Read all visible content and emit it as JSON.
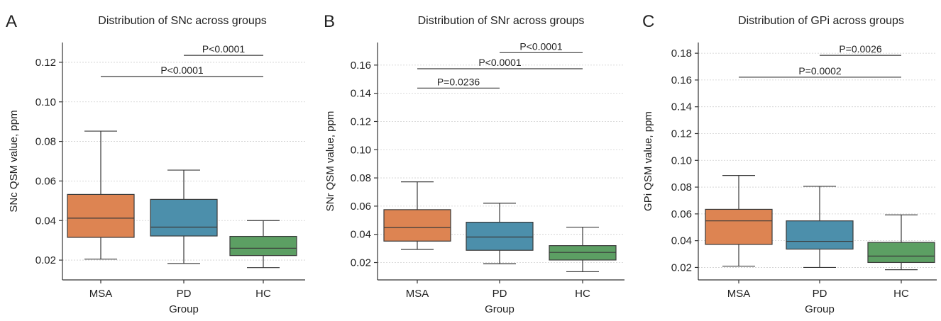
{
  "colors": {
    "MSA": "#dd8452",
    "PD": "#4c8fab",
    "HC": "#5c9f63"
  },
  "chart_data": [
    {
      "type": "box",
      "panel_label": "A",
      "title": "Distribution of SNc across groups",
      "xlabel": "Group",
      "ylabel": "SNc QSM value, ppm",
      "categories": [
        "MSA",
        "PD",
        "HC"
      ],
      "ylim": [
        0.01,
        0.13
      ],
      "yticks": [
        "0.02",
        "0.04",
        "0.06",
        "0.08",
        "0.10",
        "0.12"
      ],
      "ytick_values": [
        0.02,
        0.04,
        0.06,
        0.08,
        0.1,
        0.12
      ],
      "grid": true,
      "boxes": [
        {
          "group": "MSA",
          "min": 0.0205,
          "q1": 0.0315,
          "median": 0.0412,
          "q3": 0.0532,
          "max": 0.0852
        },
        {
          "group": "PD",
          "min": 0.0183,
          "q1": 0.0322,
          "median": 0.0367,
          "q3": 0.0507,
          "max": 0.0655
        },
        {
          "group": "HC",
          "min": 0.0162,
          "q1": 0.0223,
          "median": 0.026,
          "q3": 0.032,
          "max": 0.04
        }
      ],
      "comparisons": [
        {
          "from": "PD",
          "to": "HC",
          "label": "P<0.0001",
          "y": 0.1235
        },
        {
          "from": "MSA",
          "to": "HC",
          "label": "P<0.0001",
          "y": 0.1128
        }
      ]
    },
    {
      "type": "box",
      "panel_label": "B",
      "title": "Distribution of SNr across groups",
      "xlabel": "Group",
      "ylabel": "SNr QSM value, ppm",
      "categories": [
        "MSA",
        "PD",
        "HC"
      ],
      "ylim": [
        0.0077,
        0.176
      ],
      "yticks": [
        "0.02",
        "0.04",
        "0.06",
        "0.08",
        "0.10",
        "0.12",
        "0.14",
        "0.16"
      ],
      "ytick_values": [
        0.02,
        0.04,
        0.06,
        0.08,
        0.1,
        0.12,
        0.14,
        0.16
      ],
      "grid": true,
      "boxes": [
        {
          "group": "MSA",
          "min": 0.0293,
          "q1": 0.0352,
          "median": 0.0448,
          "q3": 0.0575,
          "max": 0.0772
        },
        {
          "group": "PD",
          "min": 0.0192,
          "q1": 0.0287,
          "median": 0.0381,
          "q3": 0.0486,
          "max": 0.0621
        },
        {
          "group": "HC",
          "min": 0.0135,
          "q1": 0.0218,
          "median": 0.0272,
          "q3": 0.032,
          "max": 0.0451
        }
      ],
      "comparisons": [
        {
          "from": "PD",
          "to": "HC",
          "label": "P<0.0001",
          "y": 0.1688
        },
        {
          "from": "MSA",
          "to": "HC",
          "label": "P<0.0001",
          "y": 0.1574
        },
        {
          "from": "MSA",
          "to": "PD",
          "label": "P=0.0236",
          "y": 0.1437
        }
      ]
    },
    {
      "type": "box",
      "panel_label": "C",
      "title": "Distribution of GPi across groups",
      "xlabel": "Group",
      "ylabel": "GPi QSM value, ppm",
      "categories": [
        "MSA",
        "PD",
        "HC"
      ],
      "ylim": [
        0.0107,
        0.188
      ],
      "yticks": [
        "0.02",
        "0.04",
        "0.06",
        "0.08",
        "0.10",
        "0.12",
        "0.14",
        "0.16",
        "0.18"
      ],
      "ytick_values": [
        0.02,
        0.04,
        0.06,
        0.08,
        0.1,
        0.12,
        0.14,
        0.16,
        0.18
      ],
      "grid": true,
      "boxes": [
        {
          "group": "MSA",
          "min": 0.021,
          "q1": 0.0372,
          "median": 0.0548,
          "q3": 0.0634,
          "max": 0.0887
        },
        {
          "group": "PD",
          "min": 0.02,
          "q1": 0.0337,
          "median": 0.0395,
          "q3": 0.0548,
          "max": 0.0806
        },
        {
          "group": "HC",
          "min": 0.0183,
          "q1": 0.0237,
          "median": 0.0285,
          "q3": 0.0387,
          "max": 0.0593
        }
      ],
      "comparisons": [
        {
          "from": "PD",
          "to": "HC",
          "label": "P=0.0026",
          "y": 0.1784
        },
        {
          "from": "MSA",
          "to": "HC",
          "label": "P=0.0002",
          "y": 0.1621
        }
      ]
    }
  ]
}
